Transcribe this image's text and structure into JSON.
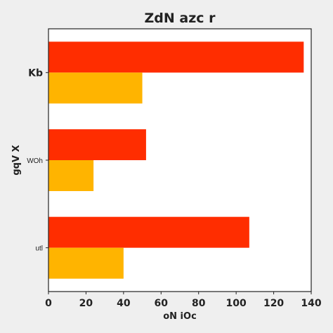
{
  "chart_data": {
    "type": "bar",
    "orientation": "horizontal",
    "title": "ZdN azc r",
    "xlabel": "oN iOc",
    "ylabel": "gqV X",
    "categories": [
      "Kb",
      "WOh",
      "utl"
    ],
    "series": [
      {
        "values": [
          136,
          52,
          107
        ],
        "color": "#ff2d00"
      },
      {
        "values": [
          50,
          24,
          40
        ],
        "color": "#ffb400"
      }
    ],
    "xlim": [
      0,
      140
    ],
    "xticks": [
      "0",
      "20",
      "40",
      "60",
      "80",
      "100",
      "120",
      "140"
    ],
    "grid": false,
    "legend": "none"
  }
}
